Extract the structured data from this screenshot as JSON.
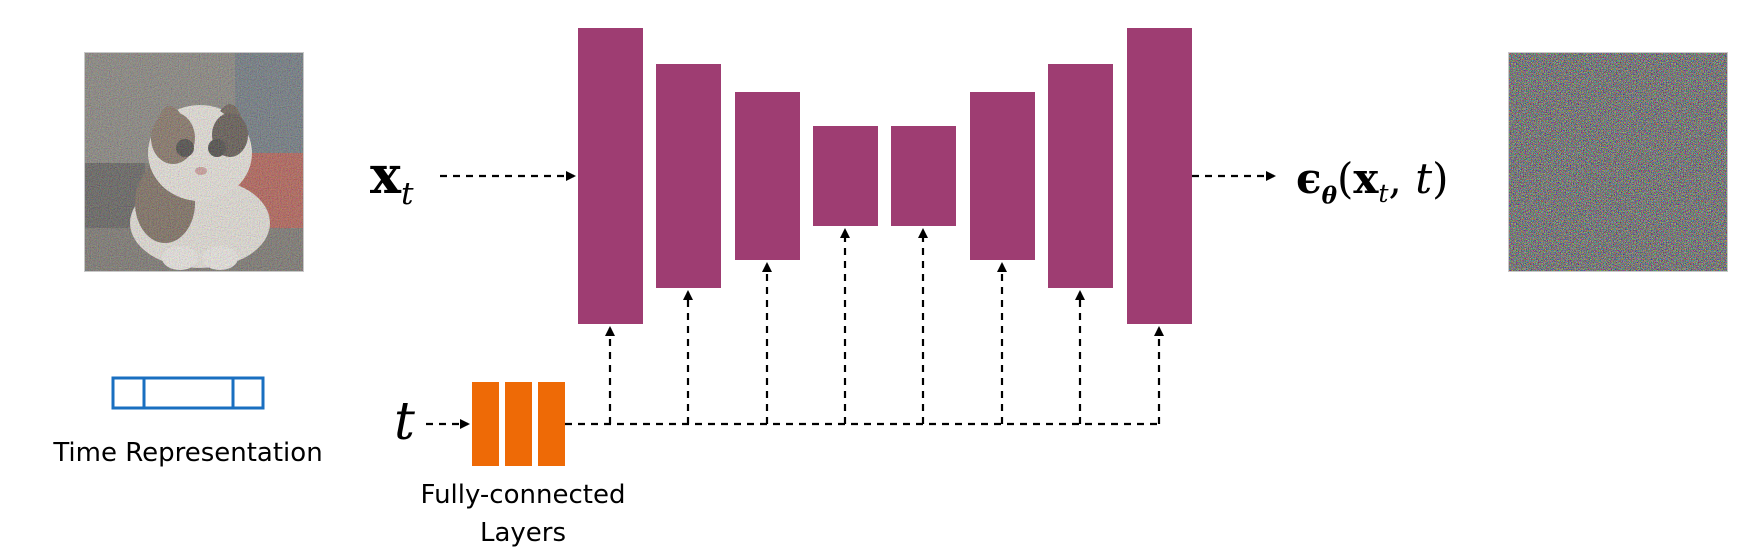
{
  "diagram": {
    "input_symbol": {
      "base": "x",
      "subscript": "t"
    },
    "output_symbol": {
      "epsilon": "ϵ",
      "epsilon_subscript": "θ",
      "open_paren": "(",
      "x": "x",
      "x_subscript": "t",
      "separator": ", ",
      "t": "t",
      "close_paren": ")"
    },
    "time_symbol": "t",
    "time_representation_label": "Time Representation",
    "fc_layers_label_line1": "Fully-connected",
    "fc_layers_label_line2": "Layers",
    "colors": {
      "unet_block": "#9e3d72",
      "fc_layer": "#ee6a06",
      "time_vector_border": "#1a6fc0",
      "arrow": "#000000"
    },
    "unet_blocks": 8,
    "fc_layer_count": 3,
    "time_vector_cells": 3
  }
}
